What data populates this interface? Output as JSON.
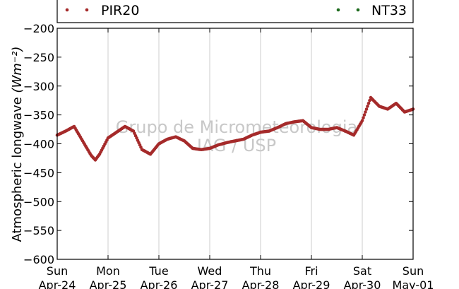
{
  "chart_data": {
    "type": "scatter",
    "ylabel": "Atmospheric longwave",
    "ylabel_unit": "(Wm⁻²)",
    "ylim": [
      -600,
      -200
    ],
    "yticks": [
      -200,
      -250,
      -300,
      -350,
      -400,
      -450,
      -500,
      -550,
      -600
    ],
    "ytick_labels": [
      "−200",
      "−250",
      "−300",
      "−350",
      "−400",
      "−450",
      "−500",
      "−550",
      "−600"
    ],
    "xlim": [
      "2016-04-24 00:00",
      "2016-05-01 00:00"
    ],
    "xticks": [
      {
        "day": "Sun",
        "date": "Apr-24"
      },
      {
        "day": "Mon",
        "date": "Apr-25"
      },
      {
        "day": "Tue",
        "date": "Apr-26"
      },
      {
        "day": "Wed",
        "date": "Apr-27"
      },
      {
        "day": "Thu",
        "date": "Apr-28"
      },
      {
        "day": "Fri",
        "date": "Apr-29"
      },
      {
        "day": "Sat",
        "date": "Apr-30"
      },
      {
        "day": "Sun",
        "date": "May-01"
      }
    ],
    "grid": "vertical",
    "legend_placement": "top",
    "series": [
      {
        "name": "PIR20",
        "color": "#a52a2a",
        "points": [
          [
            "2016-04-24 00:00",
            -385
          ],
          [
            "2016-04-24 04:00",
            -378
          ],
          [
            "2016-04-24 08:00",
            -370
          ],
          [
            "2016-04-24 12:00",
            -395
          ],
          [
            "2016-04-24 16:00",
            -420
          ],
          [
            "2016-04-24 18:00",
            -428
          ],
          [
            "2016-04-24 20:00",
            -418
          ],
          [
            "2016-04-25 00:00",
            -390
          ],
          [
            "2016-04-25 04:00",
            -380
          ],
          [
            "2016-04-25 08:00",
            -370
          ],
          [
            "2016-04-25 12:00",
            -378
          ],
          [
            "2016-04-25 16:00",
            -410
          ],
          [
            "2016-04-25 20:00",
            -418
          ],
          [
            "2016-04-26 00:00",
            -400
          ],
          [
            "2016-04-26 04:00",
            -392
          ],
          [
            "2016-04-26 08:00",
            -388
          ],
          [
            "2016-04-26 12:00",
            -395
          ],
          [
            "2016-04-26 16:00",
            -408
          ],
          [
            "2016-04-26 20:00",
            -410
          ],
          [
            "2016-04-27 00:00",
            -408
          ],
          [
            "2016-04-27 04:00",
            -402
          ],
          [
            "2016-04-27 08:00",
            -398
          ],
          [
            "2016-04-27 12:00",
            -395
          ],
          [
            "2016-04-27 16:00",
            -392
          ],
          [
            "2016-04-27 20:00",
            -385
          ],
          [
            "2016-04-28 00:00",
            -380
          ],
          [
            "2016-04-28 04:00",
            -378
          ],
          [
            "2016-04-28 08:00",
            -372
          ],
          [
            "2016-04-28 12:00",
            -365
          ],
          [
            "2016-04-28 16:00",
            -362
          ],
          [
            "2016-04-28 20:00",
            -360
          ],
          [
            "2016-04-29 00:00",
            -372
          ],
          [
            "2016-04-29 04:00",
            -375
          ],
          [
            "2016-04-29 08:00",
            -375
          ],
          [
            "2016-04-29 12:00",
            -372
          ],
          [
            "2016-04-29 16:00",
            -378
          ],
          [
            "2016-04-29 20:00",
            -385
          ],
          [
            "2016-04-30 00:00",
            -360
          ],
          [
            "2016-04-30 04:00",
            -320
          ],
          [
            "2016-04-30 08:00",
            -335
          ],
          [
            "2016-04-30 12:00",
            -340
          ],
          [
            "2016-04-30 16:00",
            -330
          ],
          [
            "2016-04-30 20:00",
            -345
          ],
          [
            "2016-05-01 00:00",
            -340
          ]
        ]
      },
      {
        "name": "NT33",
        "color": "#1e6b1e",
        "points": []
      }
    ],
    "watermark": [
      "Grupo de Micrometeorologia",
      "IAG / USP"
    ]
  }
}
